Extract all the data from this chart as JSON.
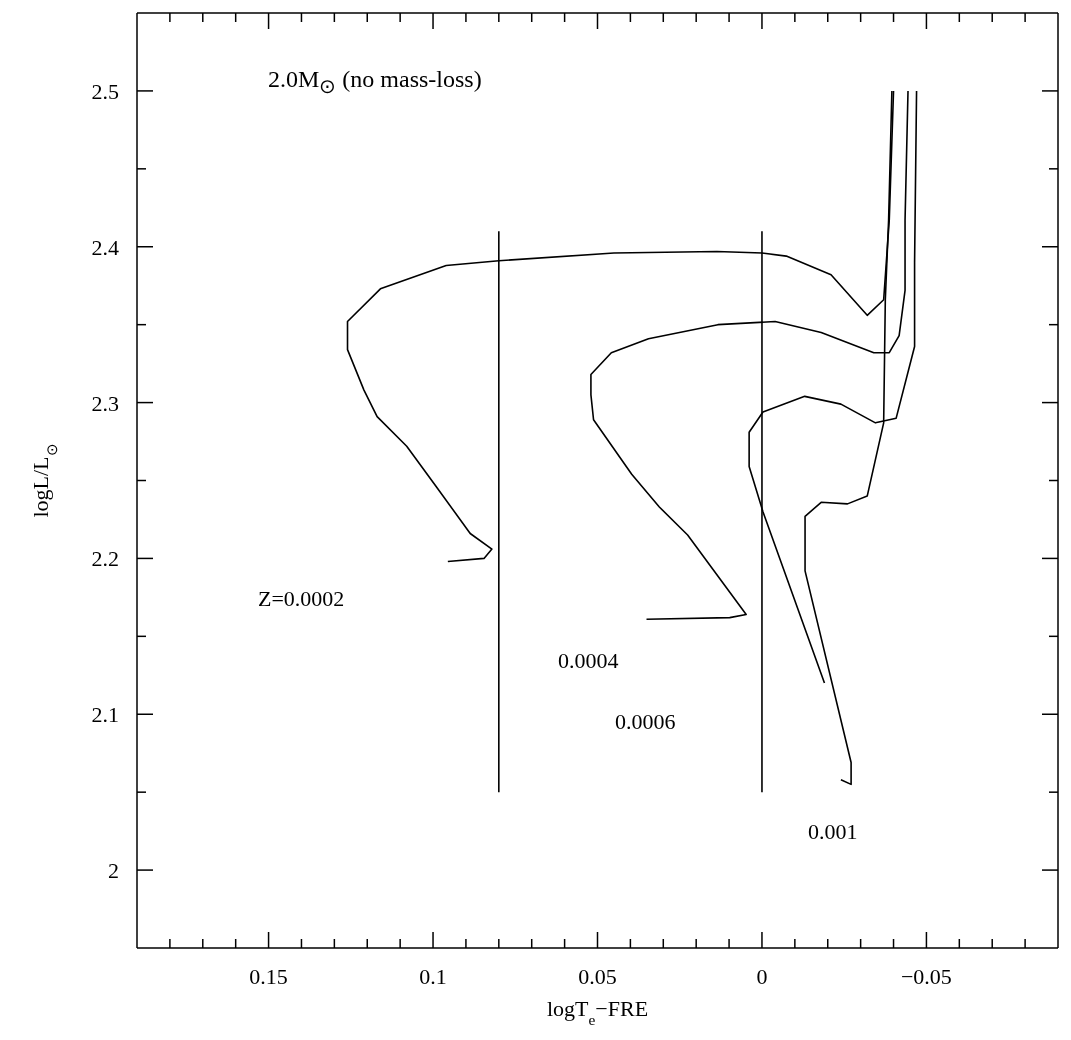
{
  "chart_data": {
    "type": "line",
    "title": "2.0M$_{⊙}$ (no mass-loss)",
    "xlabel": "logT$_{e}$−FRE",
    "ylabel": "logL/L$_{⊙}$",
    "xlim": [
      0.19,
      -0.09
    ],
    "ylim": [
      1.95,
      2.55
    ],
    "xticks": [
      {
        "value": 0.18,
        "label": null
      },
      {
        "value": 0.17,
        "label": null
      },
      {
        "value": 0.16,
        "label": null
      },
      0.15,
      {
        "value": 0.14,
        "label": null
      },
      {
        "value": 0.13,
        "label": null
      },
      {
        "value": 0.12,
        "label": null
      },
      {
        "value": 0.11,
        "label": null
      },
      0.1,
      {
        "value": 0.09,
        "label": null
      },
      {
        "value": 0.08,
        "label": null
      },
      {
        "value": 0.07,
        "label": null
      },
      {
        "value": 0.06,
        "label": null
      },
      0.05,
      {
        "value": 0.04,
        "label": null
      },
      {
        "value": 0.03,
        "label": null
      },
      {
        "value": 0.02,
        "label": null
      },
      {
        "value": 0.01,
        "label": null
      },
      0,
      {
        "value": -0.01,
        "label": null
      },
      {
        "value": -0.02,
        "label": null
      },
      {
        "value": -0.03,
        "label": null
      },
      {
        "value": -0.04,
        "label": null
      },
      {
        "value": -0.05,
        "label": "−0.05"
      },
      {
        "value": -0.06,
        "label": null
      },
      {
        "value": -0.07,
        "label": null
      },
      {
        "value": -0.08,
        "label": null
      }
    ],
    "yticks": [
      2,
      {
        "value": 2.05,
        "label": null
      },
      2.1,
      {
        "value": 2.15,
        "label": null
      },
      2.2,
      {
        "value": 2.25,
        "label": null
      },
      2.3,
      {
        "value": 2.35,
        "label": null
      },
      2.4,
      {
        "value": 2.45,
        "label": null
      },
      2.5
    ],
    "marker": "none",
    "line_style": "solid",
    "series": [
      {
        "color": "#000000",
        "x": [
          0.0955,
          0.0845,
          0.0821,
          0.0887,
          0.099,
          0.108,
          0.117,
          0.121,
          0.126,
          0.126,
          0.116,
          0.096,
          0.08,
          0.045,
          0.0137,
          0,
          -0.0074,
          -0.021,
          -0.032,
          -0.037,
          -0.0387,
          -0.04
        ],
        "values": [
          2.198,
          2.2,
          2.206,
          2.216,
          2.246,
          2.272,
          2.291,
          2.308,
          2.334,
          2.352,
          2.373,
          2.388,
          2.391,
          2.396,
          2.397,
          2.396,
          2.394,
          2.382,
          2.356,
          2.366,
          2.417,
          2.5
        ]
      },
      {
        "color": "#000000",
        "x": [
          0.0351,
          0.0098,
          0.0048,
          0.0226,
          0.0312,
          0.0396,
          0.0512,
          0.052,
          0.052,
          0.0458,
          0.0345,
          0.0134,
          -0.004,
          -0.018,
          -0.034,
          -0.0387,
          -0.0417,
          -0.0435,
          -0.0435,
          -0.0444
        ],
        "values": [
          2.161,
          2.162,
          2.164,
          2.215,
          2.233,
          2.254,
          2.289,
          2.305,
          2.318,
          2.332,
          2.341,
          2.35,
          2.352,
          2.345,
          2.332,
          2.332,
          2.343,
          2.372,
          2.417,
          2.5
        ]
      },
      {
        "color": "#000000",
        "x": [
          -0.019,
          -0.0003,
          0.0039,
          0.0039,
          -0.0003,
          -0.013,
          -0.024,
          -0.0345,
          -0.0408,
          -0.0464,
          -0.0464,
          -0.047
        ],
        "values": [
          2.12,
          2.23,
          2.259,
          2.281,
          2.294,
          2.304,
          2.299,
          2.287,
          2.29,
          2.336,
          2.39,
          2.5
        ]
      },
      {
        "color": "#000000",
        "x": [
          -0.024,
          -0.0271,
          -0.0271,
          -0.0131,
          -0.0131,
          -0.018,
          -0.026,
          -0.032,
          -0.037,
          -0.0375,
          -0.0385,
          -0.0395
        ],
        "values": [
          2.058,
          2.055,
          2.069,
          2.192,
          2.227,
          2.236,
          2.235,
          2.24,
          2.287,
          2.366,
          2.417,
          2.5
        ]
      },
      {
        "color": "#000000",
        "x": [
          0.08,
          0.08
        ],
        "values": [
          2.05,
          2.41
        ]
      },
      {
        "color": "#000000",
        "x": [
          0,
          0
        ],
        "values": [
          2.05,
          2.41
        ]
      }
    ],
    "annotations": [
      "Z=0.0002",
      "0.0004",
      "0.0006",
      "0.001"
    ]
  }
}
